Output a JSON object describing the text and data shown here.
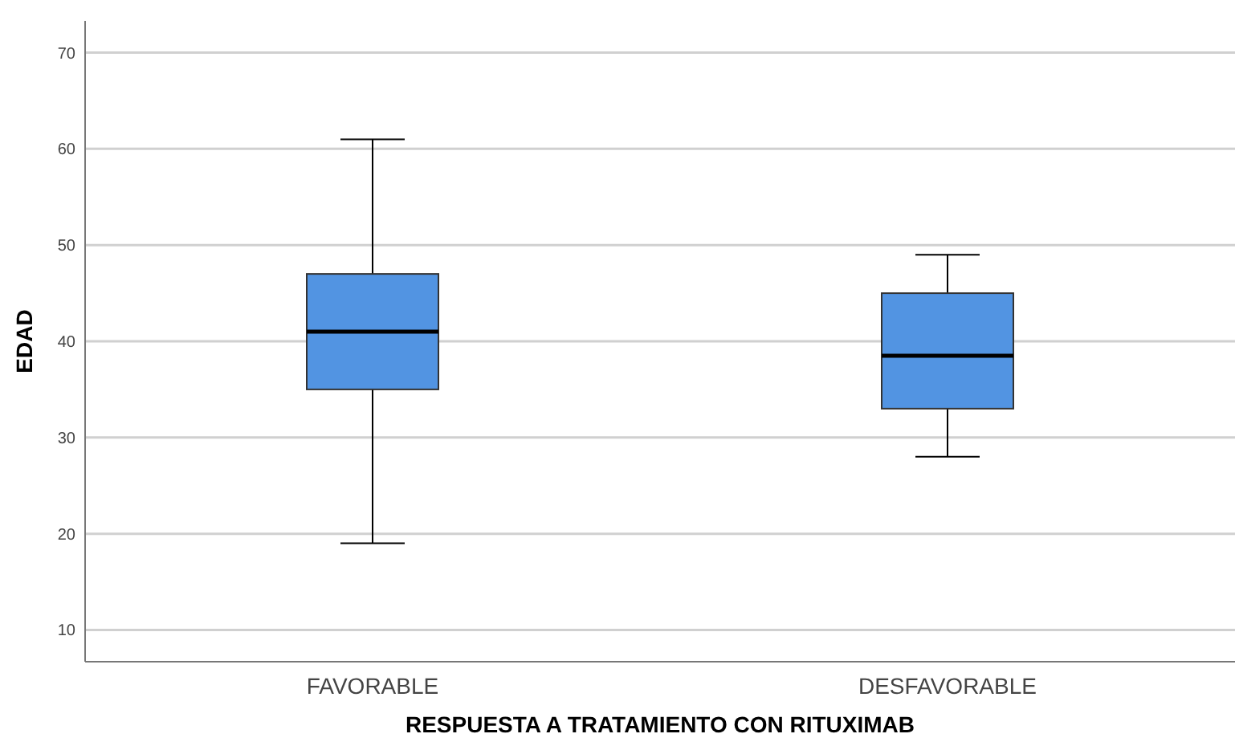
{
  "chart_data": {
    "type": "box",
    "xlabel": "RESPUESTA A TRATAMIENTO CON RITUXIMAB",
    "ylabel": "EDAD",
    "categories": [
      "FAVORABLE",
      "DESFAVORABLE"
    ],
    "color": "#5294e2",
    "boxes": [
      {
        "low": 19,
        "q1": 35,
        "median": 41,
        "q3": 47,
        "high": 61
      },
      {
        "low": 28,
        "q1": 33,
        "median": 38.5,
        "q3": 45,
        "high": 49
      }
    ],
    "ylim": [
      6.7,
      73.3
    ],
    "yticks": [
      10,
      20,
      30,
      40,
      50,
      60,
      70
    ],
    "grid": "y"
  }
}
